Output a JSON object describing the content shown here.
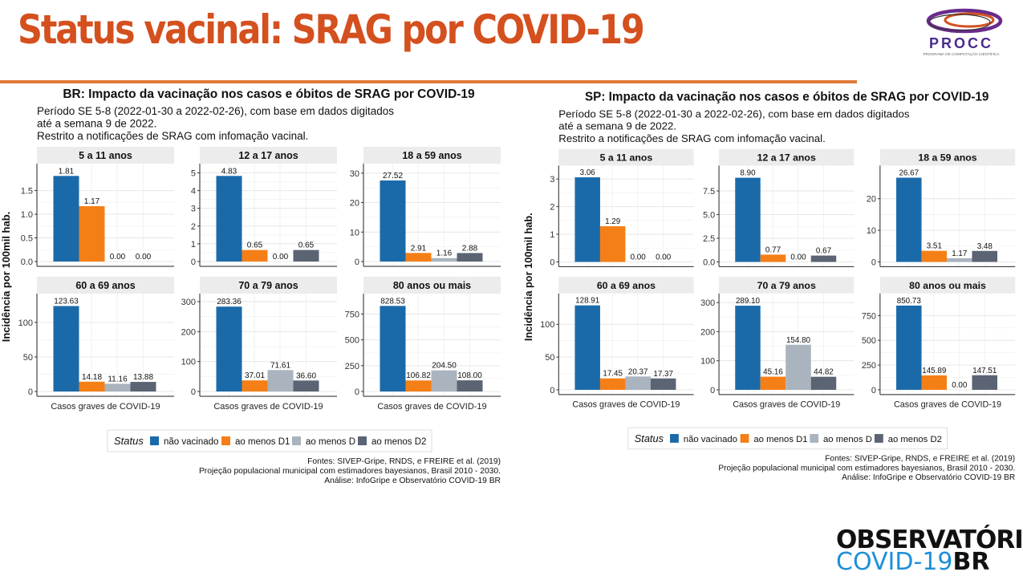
{
  "slide": {
    "title": "Status vacinal: SRAG por COVID-19",
    "logo_procc": {
      "name": "PROCC",
      "subtitle": "PROGRAMA DE COMPUTAÇÃO CIENTÍFICA"
    },
    "logo_observatorio": {
      "line1": "OBSERVATÓRIO",
      "line2_a": "COVID-19",
      "line2_b": "BR"
    },
    "accent_color": "#d4501e"
  },
  "legend": {
    "title": "Status",
    "entries": [
      {
        "label": "não vacinado",
        "color": "#1a6aaa"
      },
      {
        "label": "ao menos D1",
        "color": "#f57f17"
      },
      {
        "label": "ao menos D",
        "color": "#a9b4bf"
      },
      {
        "label": "ao menos D2",
        "color": "#5a6472"
      }
    ]
  },
  "chart_data": [
    {
      "type": "bar",
      "title": "BR: Impacto da vacinação nos casos e óbitos de SRAG por COVID-19",
      "subtitle_lines": [
        "Período SE 5-8 (2022-01-30 a 2022-02-26), com base em dados digitados",
        "até a semana 9 de 2022.",
        "Restrito a notificações de SRAG com infomação vacinal."
      ],
      "ylabel": "Incidência por 100mil hab.",
      "xlabel": "Casos graves de COVID-19",
      "series_names": [
        "não vacinado",
        "ao menos D1",
        "ao menos D",
        "ao menos D2"
      ],
      "facets": [
        {
          "label": "5 a 11 anos",
          "values": [
            1.81,
            1.17,
            0.0,
            0.0
          ],
          "value_labels": [
            "1.81",
            "1.17",
            "0.00",
            "0.00"
          ],
          "ymax": 1.9,
          "ticks": [
            0,
            0.5,
            1.0,
            1.5
          ],
          "tick_labels": [
            "0.0",
            "0.5",
            "1.0",
            "1.5"
          ]
        },
        {
          "label": "12 a 17 anos",
          "values": [
            4.83,
            0.65,
            0.0,
            0.65
          ],
          "value_labels": [
            "4.83",
            "0.65",
            "0.00",
            "0.65"
          ],
          "ymax": 5.07,
          "ticks": [
            0,
            1,
            2,
            3,
            4,
            5
          ],
          "tick_labels": [
            "0",
            "1",
            "2",
            "3",
            "4",
            "5"
          ]
        },
        {
          "label": "18 a 59 anos",
          "values": [
            27.52,
            2.91,
            1.16,
            2.88
          ],
          "value_labels": [
            "27.52",
            "2.91",
            "1.16",
            "2.88"
          ],
          "ymax": 30.5,
          "ticks": [
            0,
            10,
            20,
            30
          ],
          "tick_labels": [
            "0",
            "10",
            "20",
            "30"
          ]
        },
        {
          "label": "60 a 69 anos",
          "values": [
            123.63,
            14.18,
            11.16,
            13.88
          ],
          "value_labels": [
            "123.63",
            "14.18",
            "11.16",
            "13.88"
          ],
          "ymax": 130,
          "ticks": [
            0,
            50,
            100
          ],
          "tick_labels": [
            "0",
            "50",
            "100"
          ]
        },
        {
          "label": "70 a 79 anos",
          "values": [
            283.36,
            37.01,
            71.61,
            36.6
          ],
          "value_labels": [
            "283.36",
            "37.01",
            "71.61",
            "36.60"
          ],
          "ymax": 300,
          "ticks": [
            0,
            100,
            200,
            300
          ],
          "tick_labels": [
            "0",
            "100",
            "200",
            "300"
          ]
        },
        {
          "label": "80 anos ou mais",
          "values": [
            828.53,
            106.82,
            204.5,
            108.0
          ],
          "value_labels": [
            "828.53",
            "106.82",
            "204.50",
            "108.00"
          ],
          "ymax": 870,
          "ticks": [
            0,
            250,
            500,
            750
          ],
          "tick_labels": [
            "0",
            "250",
            "500",
            "750"
          ]
        }
      ],
      "sources": [
        "Fontes: SIVEP-Gripe, RNDS, e FREIRE et al. (2019)",
        "Projeção populacional municipal com estimadores bayesianos, Brasil 2010 - 2030.",
        "Análise: InfoGripe e Observatório COVID-19 BR"
      ]
    },
    {
      "type": "bar",
      "title": "SP: Impacto da vacinação nos casos e óbitos de SRAG por COVID-19",
      "subtitle_lines": [
        "Período SE 5-8 (2022-01-30 a 2022-02-26), com base em dados digitados",
        "até a semana 9 de 2022.",
        "Restrito a notificações de SRAG com infomação vacinal."
      ],
      "ylabel": "Incidência por 100mil hab.",
      "xlabel": "Casos graves de COVID-19",
      "series_names": [
        "não vacinado",
        "ao menos D1",
        "ao menos D",
        "ao menos D2"
      ],
      "facets": [
        {
          "label": "5 a 11 anos",
          "values": [
            3.06,
            1.29,
            0.0,
            0.0
          ],
          "value_labels": [
            "3.06",
            "1.29",
            "0.00",
            "0.00"
          ],
          "ymax": 3.2,
          "ticks": [
            0,
            1,
            2,
            3
          ],
          "tick_labels": [
            "0",
            "1",
            "2",
            "3"
          ]
        },
        {
          "label": "12 a 17 anos",
          "values": [
            8.9,
            0.77,
            0.0,
            0.67
          ],
          "value_labels": [
            "8.90",
            "0.77",
            "0.00",
            "0.67"
          ],
          "ymax": 9.35,
          "ticks": [
            0,
            2.5,
            5.0,
            7.5
          ],
          "tick_labels": [
            "0.0",
            "2.5",
            "5.0",
            "7.5"
          ]
        },
        {
          "label": "18 a 59 anos",
          "values": [
            26.67,
            3.51,
            1.17,
            3.48
          ],
          "value_labels": [
            "26.67",
            "3.51",
            "1.17",
            "3.48"
          ],
          "ymax": 28,
          "ticks": [
            0,
            10,
            20
          ],
          "tick_labels": [
            "0",
            "10",
            "20"
          ]
        },
        {
          "label": "60 a 69 anos",
          "values": [
            128.91,
            17.45,
            20.37,
            17.37
          ],
          "value_labels": [
            "128.91",
            "17.45",
            "20.37",
            "17.37"
          ],
          "ymax": 135,
          "ticks": [
            0,
            50,
            100
          ],
          "tick_labels": [
            "0",
            "50",
            "100"
          ]
        },
        {
          "label": "70 a 79 anos",
          "values": [
            289.1,
            45.16,
            154.8,
            44.82
          ],
          "value_labels": [
            "289.10",
            "45.16",
            "154.80",
            "44.82"
          ],
          "ymax": 304,
          "ticks": [
            0,
            100,
            200,
            300
          ],
          "tick_labels": [
            "0",
            "100",
            "200",
            "300"
          ]
        },
        {
          "label": "80 anos ou mais",
          "values": [
            850.73,
            145.89,
            0.0,
            147.51
          ],
          "value_labels": [
            "850.73",
            "145.89",
            "0.00",
            "147.51"
          ],
          "ymax": 893,
          "ticks": [
            0,
            250,
            500,
            750
          ],
          "tick_labels": [
            "0",
            "250",
            "500",
            "750"
          ]
        }
      ],
      "sources": [
        "Fontes: SIVEP-Gripe, RNDS, e FREIRE et al. (2019)",
        "Projeção populacional municipal com estimadores bayesianos, Brasil 2010 - 2030.",
        "Análise: InfoGripe e Observatório COVID-19 BR"
      ]
    }
  ]
}
